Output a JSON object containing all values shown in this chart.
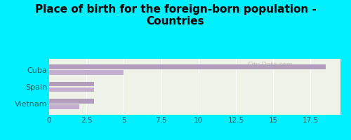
{
  "title": "Place of birth for the foreign-born population -\nCountries",
  "categories": [
    "Vietnam",
    "Spain",
    "Cuba"
  ],
  "bar1_values": [
    3.0,
    3.0,
    18.5
  ],
  "bar2_values": [
    2.0,
    3.0,
    5.0
  ],
  "bar_color1": "#b39dbd",
  "bar_color2": "#c4aed0",
  "background_outer": "#00f0ff",
  "background_plot": "#eef3e8",
  "xlim": [
    0,
    19.5
  ],
  "xticks": [
    0,
    2.5,
    5.0,
    7.5,
    10.0,
    12.5,
    15.0,
    17.5
  ],
  "xtick_labels": [
    "0",
    "2.5",
    "5",
    "7.5",
    "10",
    "12.5",
    "15",
    "17.5"
  ],
  "bar_height": 0.28,
  "bar_gap": 0.05,
  "title_fontsize": 11,
  "label_fontsize": 8,
  "tick_fontsize": 7.5,
  "label_color": "#1a6060",
  "tick_color": "#1a6060",
  "watermark": "City-Data.com"
}
